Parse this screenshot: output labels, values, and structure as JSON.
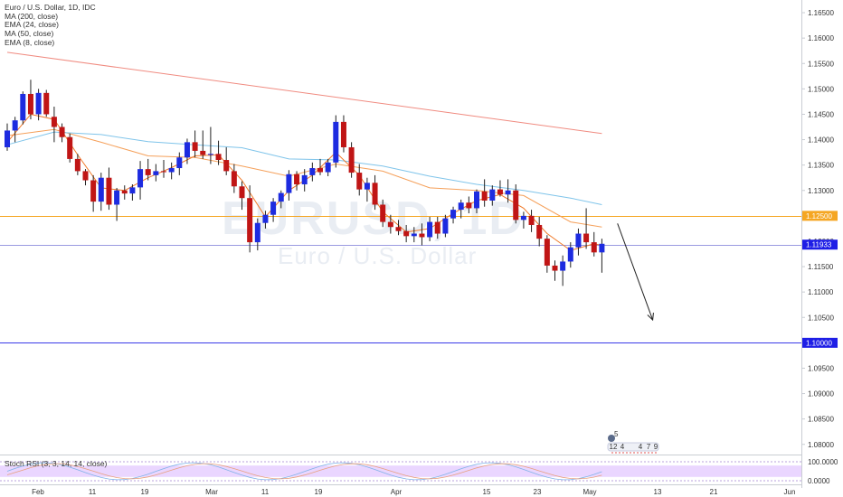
{
  "legend": {
    "title": "Euro / U.S. Dollar, 1D, IDC",
    "studies": [
      "MA (200, close)",
      "EMA (24, close)",
      "MA (50, close)",
      "EMA (8, close)"
    ]
  },
  "watermark": {
    "symbol": "EURUSD, 1D",
    "name": "Euro / U.S. Dollar"
  },
  "rsi_label": "Stoch RSI (3, 3, 14, 14, close)",
  "colors": {
    "up": "#1d2be0",
    "down": "#c01515",
    "ma200": "#f08b80",
    "ema24": "#f5a05a",
    "ma50": "#7fc4ea",
    "ema8": "#f07a2a",
    "level_orange": "#f5a623",
    "level_purple": "#9a9ae0",
    "level_blue": "#3a3ae8",
    "tag_blue": "#1e1ee6",
    "tag_orange": "#f5a623",
    "rsi_band": "#e3c8ff"
  },
  "chart_data": {
    "type": "candlestick",
    "symbol": "EUR/USD",
    "timeframe": "1D",
    "y_ticks": [
      "1.16500",
      "1.16000",
      "1.15500",
      "1.15000",
      "1.14500",
      "1.14000",
      "1.13500",
      "1.13000",
      "1.12500",
      "1.12000",
      "1.11500",
      "1.11000",
      "1.10500",
      "1.10000",
      "1.09500",
      "1.09000",
      "1.08500",
      "1.08000"
    ],
    "x_ticks": [
      "Feb",
      "11",
      "19",
      "Mar",
      "11",
      "19",
      "Apr",
      "15",
      "23",
      "May",
      "13",
      "21",
      "Jun"
    ],
    "ylim": [
      1.078,
      1.1675
    ],
    "levels": [
      {
        "label": "1.12500",
        "value": 1.125,
        "color": "orange",
        "tagged": true
      },
      {
        "label": "1.11933",
        "value": 1.11933,
        "color": "purple",
        "tagged": true
      },
      {
        "label": "1.10000",
        "value": 1.1,
        "color": "blue",
        "tagged": true
      }
    ],
    "candles": [
      {
        "o": 1.1385,
        "h": 1.1432,
        "l": 1.1378,
        "c": 1.1418
      },
      {
        "o": 1.1418,
        "h": 1.1445,
        "l": 1.1395,
        "c": 1.1438
      },
      {
        "o": 1.1438,
        "h": 1.1495,
        "l": 1.143,
        "c": 1.149
      },
      {
        "o": 1.149,
        "h": 1.1518,
        "l": 1.144,
        "c": 1.145
      },
      {
        "o": 1.145,
        "h": 1.15,
        "l": 1.1438,
        "c": 1.1492
      },
      {
        "o": 1.1492,
        "h": 1.1498,
        "l": 1.1445,
        "c": 1.145
      },
      {
        "o": 1.1445,
        "h": 1.1465,
        "l": 1.1395,
        "c": 1.1425
      },
      {
        "o": 1.1425,
        "h": 1.1432,
        "l": 1.1395,
        "c": 1.1405
      },
      {
        "o": 1.1405,
        "h": 1.1412,
        "l": 1.1355,
        "c": 1.1362
      },
      {
        "o": 1.1362,
        "h": 1.1372,
        "l": 1.133,
        "c": 1.1338
      },
      {
        "o": 1.1338,
        "h": 1.1342,
        "l": 1.131,
        "c": 1.132
      },
      {
        "o": 1.132,
        "h": 1.133,
        "l": 1.1258,
        "c": 1.1278
      },
      {
        "o": 1.1278,
        "h": 1.1335,
        "l": 1.126,
        "c": 1.1325
      },
      {
        "o": 1.1325,
        "h": 1.1345,
        "l": 1.1262,
        "c": 1.1272
      },
      {
        "o": 1.1272,
        "h": 1.1305,
        "l": 1.124,
        "c": 1.13
      },
      {
        "o": 1.13,
        "h": 1.131,
        "l": 1.1282,
        "c": 1.1294
      },
      {
        "o": 1.1294,
        "h": 1.1312,
        "l": 1.128,
        "c": 1.1306
      },
      {
        "o": 1.1306,
        "h": 1.1358,
        "l": 1.1282,
        "c": 1.1342
      },
      {
        "o": 1.1342,
        "h": 1.1362,
        "l": 1.132,
        "c": 1.133
      },
      {
        "o": 1.133,
        "h": 1.1352,
        "l": 1.1318,
        "c": 1.1338
      },
      {
        "o": 1.1338,
        "h": 1.136,
        "l": 1.1325,
        "c": 1.1336
      },
      {
        "o": 1.1336,
        "h": 1.1355,
        "l": 1.1322,
        "c": 1.1344
      },
      {
        "o": 1.1344,
        "h": 1.1375,
        "l": 1.133,
        "c": 1.1365
      },
      {
        "o": 1.1365,
        "h": 1.1402,
        "l": 1.1352,
        "c": 1.1395
      },
      {
        "o": 1.1395,
        "h": 1.1418,
        "l": 1.1365,
        "c": 1.1378
      },
      {
        "o": 1.1378,
        "h": 1.1418,
        "l": 1.1362,
        "c": 1.137
      },
      {
        "o": 1.137,
        "h": 1.1425,
        "l": 1.1352,
        "c": 1.1372
      },
      {
        "o": 1.1372,
        "h": 1.1398,
        "l": 1.135,
        "c": 1.136
      },
      {
        "o": 1.136,
        "h": 1.1385,
        "l": 1.133,
        "c": 1.1338
      },
      {
        "o": 1.1338,
        "h": 1.1352,
        "l": 1.1295,
        "c": 1.1308
      },
      {
        "o": 1.1308,
        "h": 1.1318,
        "l": 1.1262,
        "c": 1.1285
      },
      {
        "o": 1.1285,
        "h": 1.131,
        "l": 1.1178,
        "c": 1.1198
      },
      {
        "o": 1.1198,
        "h": 1.1245,
        "l": 1.1182,
        "c": 1.1236
      },
      {
        "o": 1.1236,
        "h": 1.126,
        "l": 1.1225,
        "c": 1.1252
      },
      {
        "o": 1.1252,
        "h": 1.1285,
        "l": 1.1238,
        "c": 1.1278
      },
      {
        "o": 1.1278,
        "h": 1.13,
        "l": 1.1265,
        "c": 1.1295
      },
      {
        "o": 1.1295,
        "h": 1.134,
        "l": 1.128,
        "c": 1.1332
      },
      {
        "o": 1.1332,
        "h": 1.1338,
        "l": 1.13,
        "c": 1.1312
      },
      {
        "o": 1.1312,
        "h": 1.1342,
        "l": 1.1298,
        "c": 1.133
      },
      {
        "o": 1.133,
        "h": 1.1355,
        "l": 1.1318,
        "c": 1.1344
      },
      {
        "o": 1.1344,
        "h": 1.1362,
        "l": 1.133,
        "c": 1.1336
      },
      {
        "o": 1.1336,
        "h": 1.1362,
        "l": 1.1328,
        "c": 1.1355
      },
      {
        "o": 1.1355,
        "h": 1.1448,
        "l": 1.1345,
        "c": 1.1435
      },
      {
        "o": 1.1435,
        "h": 1.1448,
        "l": 1.1375,
        "c": 1.1385
      },
      {
        "o": 1.1385,
        "h": 1.1395,
        "l": 1.1325,
        "c": 1.1335
      },
      {
        "o": 1.1335,
        "h": 1.1352,
        "l": 1.129,
        "c": 1.1302
      },
      {
        "o": 1.1302,
        "h": 1.1325,
        "l": 1.1278,
        "c": 1.1315
      },
      {
        "o": 1.1315,
        "h": 1.133,
        "l": 1.1262,
        "c": 1.1272
      },
      {
        "o": 1.1272,
        "h": 1.1282,
        "l": 1.1228,
        "c": 1.1238
      },
      {
        "o": 1.1238,
        "h": 1.1252,
        "l": 1.1215,
        "c": 1.1228
      },
      {
        "o": 1.1228,
        "h": 1.1242,
        "l": 1.1212,
        "c": 1.122
      },
      {
        "o": 1.122,
        "h": 1.1232,
        "l": 1.1198,
        "c": 1.121
      },
      {
        "o": 1.121,
        "h": 1.1228,
        "l": 1.1198,
        "c": 1.1215
      },
      {
        "o": 1.1215,
        "h": 1.1235,
        "l": 1.1192,
        "c": 1.1208
      },
      {
        "o": 1.1208,
        "h": 1.1248,
        "l": 1.12,
        "c": 1.1238
      },
      {
        "o": 1.1238,
        "h": 1.1248,
        "l": 1.1205,
        "c": 1.1215
      },
      {
        "o": 1.1215,
        "h": 1.1252,
        "l": 1.1208,
        "c": 1.1245
      },
      {
        "o": 1.1245,
        "h": 1.1268,
        "l": 1.1235,
        "c": 1.1262
      },
      {
        "o": 1.1262,
        "h": 1.1282,
        "l": 1.1245,
        "c": 1.1276
      },
      {
        "o": 1.1276,
        "h": 1.1288,
        "l": 1.1255,
        "c": 1.1265
      },
      {
        "o": 1.1265,
        "h": 1.1302,
        "l": 1.1255,
        "c": 1.1298
      },
      {
        "o": 1.1298,
        "h": 1.1322,
        "l": 1.1268,
        "c": 1.128
      },
      {
        "o": 1.128,
        "h": 1.131,
        "l": 1.127,
        "c": 1.1302
      },
      {
        "o": 1.1302,
        "h": 1.132,
        "l": 1.1288,
        "c": 1.1292
      },
      {
        "o": 1.1292,
        "h": 1.1322,
        "l": 1.1276,
        "c": 1.13
      },
      {
        "o": 1.13,
        "h": 1.1312,
        "l": 1.1235,
        "c": 1.1242
      },
      {
        "o": 1.1242,
        "h": 1.1258,
        "l": 1.1225,
        "c": 1.125
      },
      {
        "o": 1.125,
        "h": 1.1262,
        "l": 1.1218,
        "c": 1.1232
      },
      {
        "o": 1.1232,
        "h": 1.1248,
        "l": 1.119,
        "c": 1.1205
      },
      {
        "o": 1.1205,
        "h": 1.1212,
        "l": 1.1138,
        "c": 1.1152
      },
      {
        "o": 1.1152,
        "h": 1.1162,
        "l": 1.1122,
        "c": 1.1142
      },
      {
        "o": 1.1142,
        "h": 1.1172,
        "l": 1.1112,
        "c": 1.116
      },
      {
        "o": 1.116,
        "h": 1.1198,
        "l": 1.1148,
        "c": 1.1188
      },
      {
        "o": 1.1188,
        "h": 1.1225,
        "l": 1.1172,
        "c": 1.1215
      },
      {
        "o": 1.1215,
        "h": 1.1265,
        "l": 1.1185,
        "c": 1.1198
      },
      {
        "o": 1.1198,
        "h": 1.1218,
        "l": 1.117,
        "c": 1.1178
      },
      {
        "o": 1.1178,
        "h": 1.1205,
        "l": 1.1138,
        "c": 1.1195
      }
    ],
    "moving_averages": [
      {
        "name": "MA (200, close)",
        "color": "ma200",
        "x": [
          0,
          76
        ],
        "y": [
          1.1572,
          1.1412
        ]
      },
      {
        "name": "EMA (24, close)",
        "color": "ema24",
        "x": [
          0,
          6,
          12,
          18,
          24,
          30,
          36,
          42,
          48,
          54,
          60,
          66,
          72,
          76
        ],
        "y": [
          1.1408,
          1.142,
          1.1395,
          1.1368,
          1.1365,
          1.1348,
          1.1328,
          1.1352,
          1.1338,
          1.1305,
          1.13,
          1.129,
          1.1238,
          1.1228
        ]
      },
      {
        "name": "MA (50, close)",
        "color": "ma50",
        "x": [
          0,
          6,
          12,
          18,
          24,
          30,
          36,
          42,
          48,
          54,
          60,
          66,
          72,
          76
        ],
        "y": [
          1.139,
          1.1415,
          1.141,
          1.1396,
          1.139,
          1.1384,
          1.1362,
          1.136,
          1.1348,
          1.1328,
          1.1312,
          1.13,
          1.1285,
          1.1272
        ]
      },
      {
        "name": "EMA (8, close)",
        "color": "ema8",
        "x": [
          0,
          3,
          6,
          9,
          12,
          15,
          18,
          21,
          24,
          27,
          30,
          33,
          36,
          39,
          42,
          45,
          48,
          51,
          54,
          57,
          60,
          63,
          66,
          69,
          72,
          75,
          76
        ],
        "y": [
          1.1395,
          1.145,
          1.144,
          1.137,
          1.1305,
          1.13,
          1.1325,
          1.1345,
          1.1368,
          1.137,
          1.132,
          1.1248,
          1.13,
          1.133,
          1.1375,
          1.133,
          1.1258,
          1.1218,
          1.1225,
          1.1255,
          1.128,
          1.1292,
          1.1265,
          1.1215,
          1.1182,
          1.1195,
          1.1192
        ]
      }
    ],
    "projection_arrow": {
      "from": {
        "x": 78,
        "y": 1.1235
      },
      "to": {
        "x": 82.5,
        "y": 1.1045
      }
    },
    "stoch_rsi": {
      "name": "Stoch RSI (3, 3, 14, 14, close)",
      "ticks": [
        "100.0000",
        "0.0000"
      ],
      "ylim": [
        0,
        100
      ],
      "band": [
        20,
        80
      ]
    },
    "events_badge": {
      "top": "5",
      "digits": [
        "12",
        "4",
        "4",
        "7",
        "9"
      ]
    }
  }
}
